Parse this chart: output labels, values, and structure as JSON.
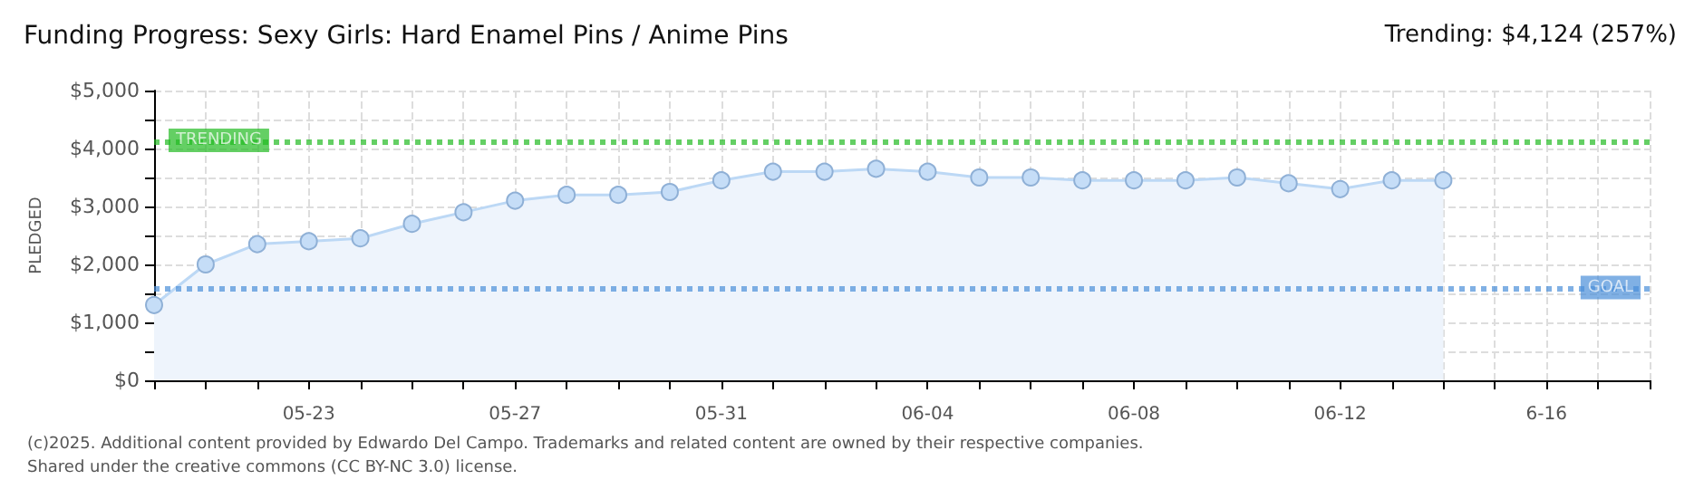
{
  "chart_data": {
    "type": "area",
    "title": "Funding Progress: Sexy Girls: Hard Enamel Pins / Anime Pins",
    "subtitle": "Trending: $4,124 (257%)",
    "ylabel": "PLEDGED",
    "categories": [
      null,
      null,
      null,
      "05-23",
      null,
      null,
      null,
      "05-27",
      null,
      null,
      null,
      "05-31",
      null,
      null,
      null,
      "06-04",
      null,
      null,
      null,
      "06-08",
      null,
      null,
      null,
      "06-12",
      null,
      null,
      null,
      "6-16",
      null,
      null
    ],
    "series": [
      {
        "color": "#bcd8f5",
        "values": [
          1300,
          2000,
          2350,
          2400,
          2450,
          2700,
          2900,
          3100,
          3200,
          3200,
          3250,
          3450,
          3600,
          3600,
          3650,
          3600,
          3500,
          3500,
          3450,
          3450,
          3450,
          3500,
          3400,
          3300,
          3450,
          3450,
          null,
          null,
          null,
          null
        ]
      }
    ],
    "ylim": [
      0,
      5000
    ],
    "yticks": [
      {
        "value": 0,
        "label": "$0"
      },
      {
        "value": 500,
        "label": null
      },
      {
        "value": 1000,
        "label": "$1,000"
      },
      {
        "value": 1500,
        "label": null
      },
      {
        "value": 2000,
        "label": "$2,000"
      },
      {
        "value": 2500,
        "label": null
      },
      {
        "value": 3000,
        "label": "$3,000"
      },
      {
        "value": 3500,
        "label": null
      },
      {
        "value": 4000,
        "label": "$4,000"
      },
      {
        "value": 4500,
        "label": null
      },
      {
        "value": 5000,
        "label": "$5,000"
      }
    ],
    "ref_lines": [
      {
        "axis": "y",
        "value": 4124,
        "label": "TRENDING",
        "color": "#22bb22",
        "line_style": "dotted"
      },
      {
        "axis": "y",
        "value": 1600,
        "label": "GOAL",
        "color": "#4a8fd8",
        "line_style": "dotted"
      }
    ],
    "grid": true,
    "marker": "circle",
    "annotations": [
      "(c)2025. Additional content provided by Edwardo Del Campo. Trademarks and related content are owned by their respective companies.",
      "Shared under the creative commons (CC BY-NC 3.0) license."
    ]
  }
}
